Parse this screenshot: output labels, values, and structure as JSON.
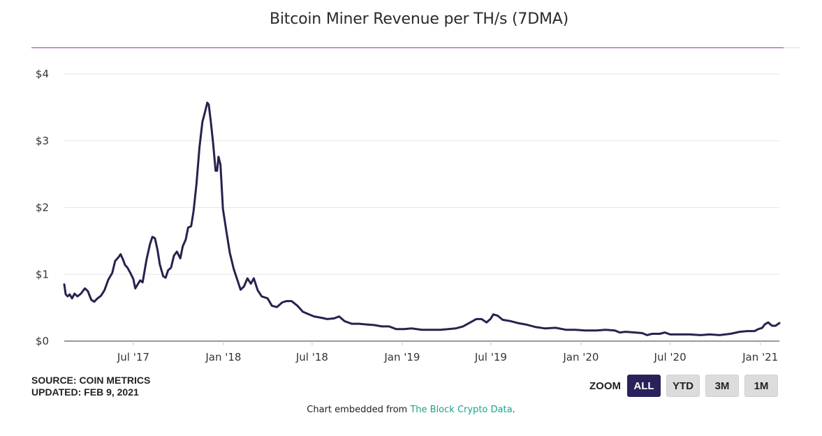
{
  "header": {
    "title": "Bitcoin Miner Revenue per TH/s (7DMA)"
  },
  "footer": {
    "source": "SOURCE: COIN METRICS",
    "updated": "UPDATED: FEB 9, 2021",
    "embed_prefix": "Chart embedded from ",
    "embed_link": "The Block Crypto Data",
    "embed_suffix": "."
  },
  "zoom": {
    "label": "ZOOM",
    "buttons": [
      "ALL",
      "YTD",
      "3M",
      "1M"
    ],
    "active": "ALL"
  },
  "colors": {
    "line": "#28214f",
    "grid": "#e6e6e6",
    "rule": "#b02bc9",
    "active_button": "#28215a",
    "link": "#17a589"
  },
  "chart_data": {
    "type": "line",
    "title": "Bitcoin Miner Revenue per TH/s (7DMA)",
    "xlabel": "",
    "ylabel": "",
    "ylim": [
      0,
      4
    ],
    "yticks": [
      0,
      1,
      2,
      3,
      4
    ],
    "ytick_labels": [
      "$0",
      "$1",
      "$2",
      "$3",
      "$4"
    ],
    "x_range": [
      "2017-02-10",
      "2021-02-09"
    ],
    "xticks": [
      "2017-07-01",
      "2018-01-01",
      "2018-07-01",
      "2019-01-01",
      "2019-07-01",
      "2020-01-01",
      "2020-07-01",
      "2021-01-01"
    ],
    "xtick_labels": [
      "Jul '17",
      "Jan '18",
      "Jul '18",
      "Jan '19",
      "Jul '19",
      "Jan '20",
      "Jul '20",
      "Jan '21"
    ],
    "grid": true,
    "series": [
      {
        "name": "Miner Revenue per TH/s (7DMA)",
        "points": [
          [
            "2017-02-10",
            0.85
          ],
          [
            "2017-02-13",
            0.7
          ],
          [
            "2017-02-17",
            0.67
          ],
          [
            "2017-02-21",
            0.7
          ],
          [
            "2017-02-26",
            0.64
          ],
          [
            "2017-03-03",
            0.71
          ],
          [
            "2017-03-09",
            0.67
          ],
          [
            "2017-03-16",
            0.71
          ],
          [
            "2017-03-24",
            0.79
          ],
          [
            "2017-03-30",
            0.75
          ],
          [
            "2017-04-06",
            0.62
          ],
          [
            "2017-04-12",
            0.59
          ],
          [
            "2017-04-19",
            0.64
          ],
          [
            "2017-04-26",
            0.68
          ],
          [
            "2017-05-03",
            0.76
          ],
          [
            "2017-05-11",
            0.92
          ],
          [
            "2017-05-19",
            1.02
          ],
          [
            "2017-05-25",
            1.2
          ],
          [
            "2017-05-31",
            1.25
          ],
          [
            "2017-06-05",
            1.3
          ],
          [
            "2017-06-10",
            1.22
          ],
          [
            "2017-06-14",
            1.14
          ],
          [
            "2017-06-19",
            1.1
          ],
          [
            "2017-06-25",
            1.02
          ],
          [
            "2017-07-01",
            0.93
          ],
          [
            "2017-07-05",
            0.79
          ],
          [
            "2017-07-10",
            0.85
          ],
          [
            "2017-07-15",
            0.91
          ],
          [
            "2017-07-20",
            0.88
          ],
          [
            "2017-07-28",
            1.22
          ],
          [
            "2017-08-04",
            1.45
          ],
          [
            "2017-08-09",
            1.56
          ],
          [
            "2017-08-14",
            1.54
          ],
          [
            "2017-08-19",
            1.38
          ],
          [
            "2017-08-24",
            1.15
          ],
          [
            "2017-08-31",
            0.97
          ],
          [
            "2017-09-05",
            0.95
          ],
          [
            "2017-09-10",
            1.06
          ],
          [
            "2017-09-16",
            1.1
          ],
          [
            "2017-09-22",
            1.28
          ],
          [
            "2017-09-28",
            1.34
          ],
          [
            "2017-10-05",
            1.24
          ],
          [
            "2017-10-10",
            1.42
          ],
          [
            "2017-10-16",
            1.52
          ],
          [
            "2017-10-21",
            1.7
          ],
          [
            "2017-10-27",
            1.72
          ],
          [
            "2017-11-01",
            1.95
          ],
          [
            "2017-11-07",
            2.36
          ],
          [
            "2017-11-13",
            2.9
          ],
          [
            "2017-11-19",
            3.28
          ],
          [
            "2017-11-25",
            3.45
          ],
          [
            "2017-11-29",
            3.57
          ],
          [
            "2017-12-02",
            3.54
          ],
          [
            "2017-12-06",
            3.3
          ],
          [
            "2017-12-11",
            2.96
          ],
          [
            "2017-12-16",
            2.55
          ],
          [
            "2017-12-19",
            2.55
          ],
          [
            "2017-12-22",
            2.76
          ],
          [
            "2017-12-26",
            2.64
          ],
          [
            "2017-12-31",
            1.98
          ],
          [
            "2018-01-07",
            1.64
          ],
          [
            "2018-01-14",
            1.32
          ],
          [
            "2018-01-22",
            1.08
          ],
          [
            "2018-01-31",
            0.88
          ],
          [
            "2018-02-05",
            0.77
          ],
          [
            "2018-02-12",
            0.82
          ],
          [
            "2018-02-19",
            0.94
          ],
          [
            "2018-02-26",
            0.86
          ],
          [
            "2018-03-04",
            0.94
          ],
          [
            "2018-03-12",
            0.76
          ],
          [
            "2018-03-20",
            0.67
          ],
          [
            "2018-04-01",
            0.64
          ],
          [
            "2018-04-10",
            0.53
          ],
          [
            "2018-04-20",
            0.51
          ],
          [
            "2018-05-01",
            0.58
          ],
          [
            "2018-05-10",
            0.6
          ],
          [
            "2018-05-20",
            0.6
          ],
          [
            "2018-06-01",
            0.53
          ],
          [
            "2018-06-12",
            0.44
          ],
          [
            "2018-06-25",
            0.4
          ],
          [
            "2018-07-05",
            0.37
          ],
          [
            "2018-07-20",
            0.35
          ],
          [
            "2018-08-01",
            0.33
          ],
          [
            "2018-08-15",
            0.34
          ],
          [
            "2018-08-25",
            0.37
          ],
          [
            "2018-09-05",
            0.3
          ],
          [
            "2018-09-20",
            0.26
          ],
          [
            "2018-10-05",
            0.26
          ],
          [
            "2018-10-20",
            0.25
          ],
          [
            "2018-11-05",
            0.24
          ],
          [
            "2018-11-20",
            0.22
          ],
          [
            "2018-12-05",
            0.22
          ],
          [
            "2018-12-20",
            0.18
          ],
          [
            "2019-01-05",
            0.18
          ],
          [
            "2019-01-20",
            0.19
          ],
          [
            "2019-02-10",
            0.17
          ],
          [
            "2019-03-01",
            0.17
          ],
          [
            "2019-03-20",
            0.17
          ],
          [
            "2019-04-05",
            0.18
          ],
          [
            "2019-04-20",
            0.19
          ],
          [
            "2019-05-05",
            0.22
          ],
          [
            "2019-05-20",
            0.28
          ],
          [
            "2019-06-01",
            0.33
          ],
          [
            "2019-06-12",
            0.33
          ],
          [
            "2019-06-22",
            0.28
          ],
          [
            "2019-06-30",
            0.33
          ],
          [
            "2019-07-06",
            0.4
          ],
          [
            "2019-07-15",
            0.38
          ],
          [
            "2019-07-25",
            0.32
          ],
          [
            "2019-08-10",
            0.3
          ],
          [
            "2019-08-25",
            0.27
          ],
          [
            "2019-09-10",
            0.25
          ],
          [
            "2019-10-01",
            0.21
          ],
          [
            "2019-10-20",
            0.19
          ],
          [
            "2019-11-10",
            0.2
          ],
          [
            "2019-12-01",
            0.17
          ],
          [
            "2019-12-20",
            0.17
          ],
          [
            "2020-01-10",
            0.16
          ],
          [
            "2020-02-01",
            0.16
          ],
          [
            "2020-02-20",
            0.17
          ],
          [
            "2020-03-10",
            0.16
          ],
          [
            "2020-03-20",
            0.13
          ],
          [
            "2020-04-01",
            0.14
          ],
          [
            "2020-04-20",
            0.13
          ],
          [
            "2020-05-05",
            0.12
          ],
          [
            "2020-05-15",
            0.09
          ],
          [
            "2020-05-25",
            0.11
          ],
          [
            "2020-06-10",
            0.11
          ],
          [
            "2020-06-20",
            0.13
          ],
          [
            "2020-07-01",
            0.1
          ],
          [
            "2020-07-20",
            0.1
          ],
          [
            "2020-08-10",
            0.1
          ],
          [
            "2020-09-01",
            0.09
          ],
          [
            "2020-09-20",
            0.1
          ],
          [
            "2020-10-10",
            0.09
          ],
          [
            "2020-11-01",
            0.11
          ],
          [
            "2020-11-20",
            0.14
          ],
          [
            "2020-12-05",
            0.15
          ],
          [
            "2020-12-20",
            0.15
          ],
          [
            "2020-12-28",
            0.18
          ],
          [
            "2021-01-05",
            0.2
          ],
          [
            "2021-01-10",
            0.25
          ],
          [
            "2021-01-17",
            0.28
          ],
          [
            "2021-01-25",
            0.23
          ],
          [
            "2021-02-01",
            0.23
          ],
          [
            "2021-02-09",
            0.27
          ]
        ]
      }
    ]
  }
}
